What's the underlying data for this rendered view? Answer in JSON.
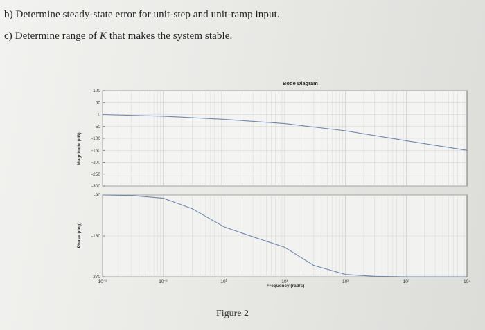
{
  "questions": {
    "b": "b) Determine steady-state error for unit-step and unit-ramp input.",
    "c_prefix": "c) Determine range of ",
    "c_var": "K",
    "c_suffix": " that makes the system stable."
  },
  "chart_data": {
    "type": "line",
    "title": "Bode Diagram",
    "xlabel": "Frequency (rad/s)",
    "x_scale": "log",
    "xlim": [
      0.01,
      10000
    ],
    "x_tick_labels": [
      "10⁻²",
      "10⁻¹",
      "10⁰",
      "10¹",
      "10²",
      "10³",
      "10⁴"
    ],
    "magnitude": {
      "ylabel": "Magnitude (dB)",
      "ylim": [
        -300,
        100
      ],
      "y_ticks": [
        "100",
        "50",
        "0",
        "-50",
        "-100",
        "-150",
        "-200",
        "-250",
        "-300"
      ],
      "x": [
        0.01,
        0.1,
        1,
        10,
        100,
        1000,
        10000
      ],
      "y": [
        0,
        -7,
        -20,
        -38,
        -68,
        -110,
        -150
      ]
    },
    "phase": {
      "ylabel": "Phase (deg)",
      "ylim": [
        -270,
        -90
      ],
      "y_ticks": [
        "-90",
        "-180",
        "-270"
      ],
      "x": [
        0.01,
        0.03,
        0.1,
        0.3,
        1,
        3,
        10,
        30,
        100,
        300,
        1000,
        10000
      ],
      "y": [
        -90,
        -91,
        -97,
        -120,
        -160,
        -182,
        -205,
        -245,
        -265,
        -269,
        -270,
        -270
      ]
    },
    "grid": true
  },
  "caption": "Figure 2"
}
